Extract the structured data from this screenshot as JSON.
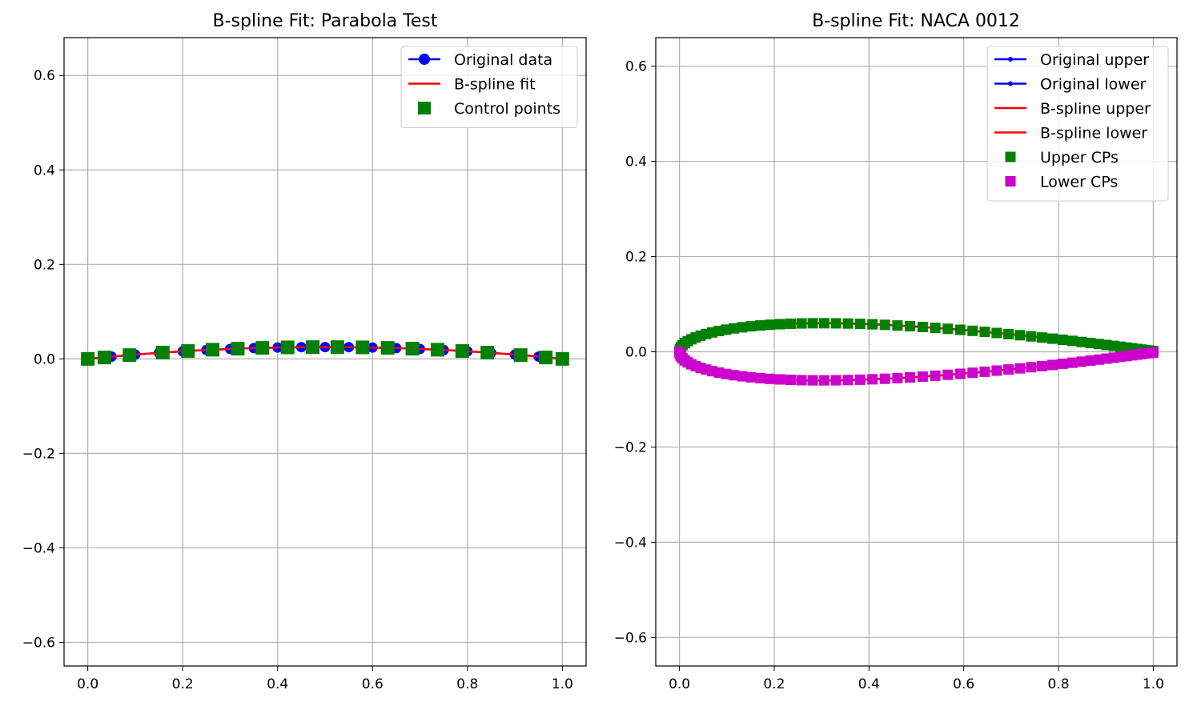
{
  "chart_data": [
    {
      "type": "line",
      "title": "B-spline Fit: Parabola Test",
      "xlim": [
        -0.05,
        1.05
      ],
      "ylim": [
        -0.65,
        0.68
      ],
      "xticks": [
        0.0,
        0.2,
        0.4,
        0.6,
        0.8,
        1.0
      ],
      "xtick_labels": [
        "0.0",
        "0.2",
        "0.4",
        "0.6",
        "0.8",
        "1.0"
      ],
      "yticks": [
        -0.6,
        -0.4,
        -0.2,
        0.0,
        0.2,
        0.4,
        0.6
      ],
      "ytick_labels": [
        "−0.6",
        "−0.4",
        "−0.2",
        "0.0",
        "0.2",
        "0.4",
        "0.6"
      ],
      "grid": true,
      "legend_position": "top-right",
      "series": [
        {
          "name": "Original data",
          "kind": "line-marker-circle",
          "color": "#0000ff",
          "x": [
            0.0,
            0.05,
            0.1,
            0.15,
            0.2,
            0.25,
            0.3,
            0.35,
            0.4,
            0.45,
            0.5,
            0.55,
            0.6,
            0.65,
            0.7,
            0.75,
            0.8,
            0.85,
            0.9,
            0.95,
            1.0
          ],
          "y": [
            0.0,
            0.0048,
            0.009,
            0.0128,
            0.016,
            0.0188,
            0.021,
            0.0228,
            0.024,
            0.0248,
            0.025,
            0.0248,
            0.024,
            0.0228,
            0.021,
            0.0188,
            0.016,
            0.0128,
            0.009,
            0.0048,
            0.0
          ]
        },
        {
          "name": "B-spline fit",
          "kind": "line",
          "color": "#ff0000",
          "x": [
            0.0,
            0.05,
            0.1,
            0.15,
            0.2,
            0.25,
            0.3,
            0.35,
            0.4,
            0.45,
            0.5,
            0.55,
            0.6,
            0.65,
            0.7,
            0.75,
            0.8,
            0.85,
            0.9,
            0.95,
            1.0
          ],
          "y": [
            0.0,
            0.0048,
            0.009,
            0.0128,
            0.016,
            0.0188,
            0.021,
            0.0228,
            0.024,
            0.0248,
            0.025,
            0.0248,
            0.024,
            0.0228,
            0.021,
            0.0188,
            0.016,
            0.0128,
            0.009,
            0.0048,
            0.0
          ]
        },
        {
          "name": "Control points",
          "kind": "marker-square",
          "color": "#008000",
          "x": [
            0.0,
            0.035,
            0.088,
            0.158,
            0.211,
            0.263,
            0.316,
            0.368,
            0.421,
            0.474,
            0.526,
            0.579,
            0.632,
            0.684,
            0.737,
            0.789,
            0.842,
            0.912,
            0.965,
            1.0
          ],
          "y": [
            0.0,
            0.003,
            0.008,
            0.0133,
            0.0166,
            0.0194,
            0.0216,
            0.0233,
            0.0244,
            0.0249,
            0.0249,
            0.0244,
            0.0233,
            0.0216,
            0.0194,
            0.0166,
            0.0133,
            0.008,
            0.003,
            0.0
          ]
        }
      ]
    },
    {
      "type": "line",
      "title": "B-spline Fit: NACA 0012",
      "xlim": [
        -0.05,
        1.05
      ],
      "ylim": [
        -0.66,
        0.66
      ],
      "xticks": [
        0.0,
        0.2,
        0.4,
        0.6,
        0.8,
        1.0
      ],
      "xtick_labels": [
        "0.0",
        "0.2",
        "0.4",
        "0.6",
        "0.8",
        "1.0"
      ],
      "yticks": [
        -0.6,
        -0.4,
        -0.2,
        0.0,
        0.2,
        0.4,
        0.6
      ],
      "ytick_labels": [
        "−0.6",
        "−0.4",
        "−0.2",
        "0.0",
        "0.2",
        "0.4",
        "0.6"
      ],
      "grid": true,
      "legend_position": "top-right",
      "airfoil_thickness": 0.12,
      "series": [
        {
          "name": "Original upper",
          "kind": "line-marker-dot",
          "color": "#0000ff",
          "surface": "upper"
        },
        {
          "name": "Original lower",
          "kind": "line-marker-dot",
          "color": "#0000ff",
          "surface": "lower"
        },
        {
          "name": "B-spline upper",
          "kind": "line",
          "color": "#ff0000",
          "surface": "upper"
        },
        {
          "name": "B-spline lower",
          "kind": "line",
          "color": "#ff0000",
          "surface": "lower"
        },
        {
          "name": "Upper CPs",
          "kind": "marker-square",
          "color": "#008000",
          "surface": "upper"
        },
        {
          "name": "Lower CPs",
          "kind": "marker-square",
          "color": "#cc00cc",
          "surface": "lower"
        }
      ]
    }
  ]
}
